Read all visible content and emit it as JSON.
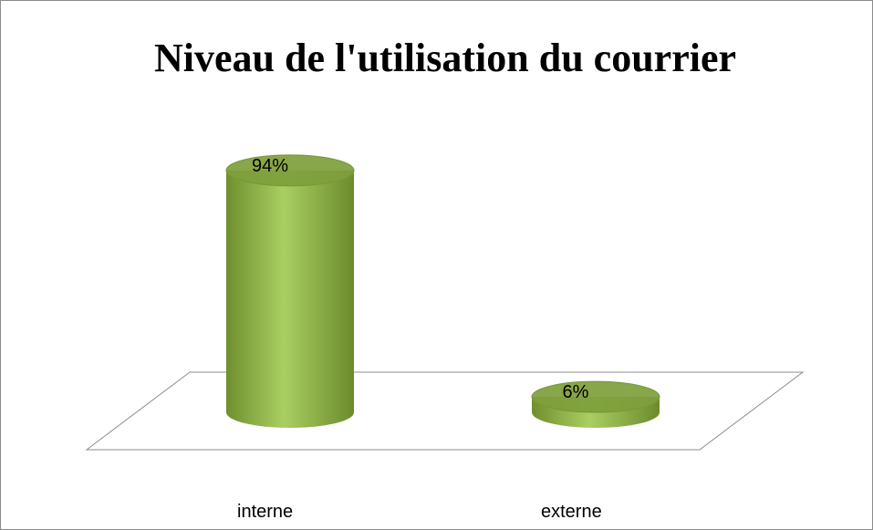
{
  "chart_data": {
    "type": "bar",
    "title": "Niveau de l'utilisation du courrier",
    "categories": [
      "interne",
      "externe"
    ],
    "values": [
      94,
      6
    ],
    "value_labels": [
      "94%",
      "6%"
    ],
    "color": "#8fb447"
  }
}
